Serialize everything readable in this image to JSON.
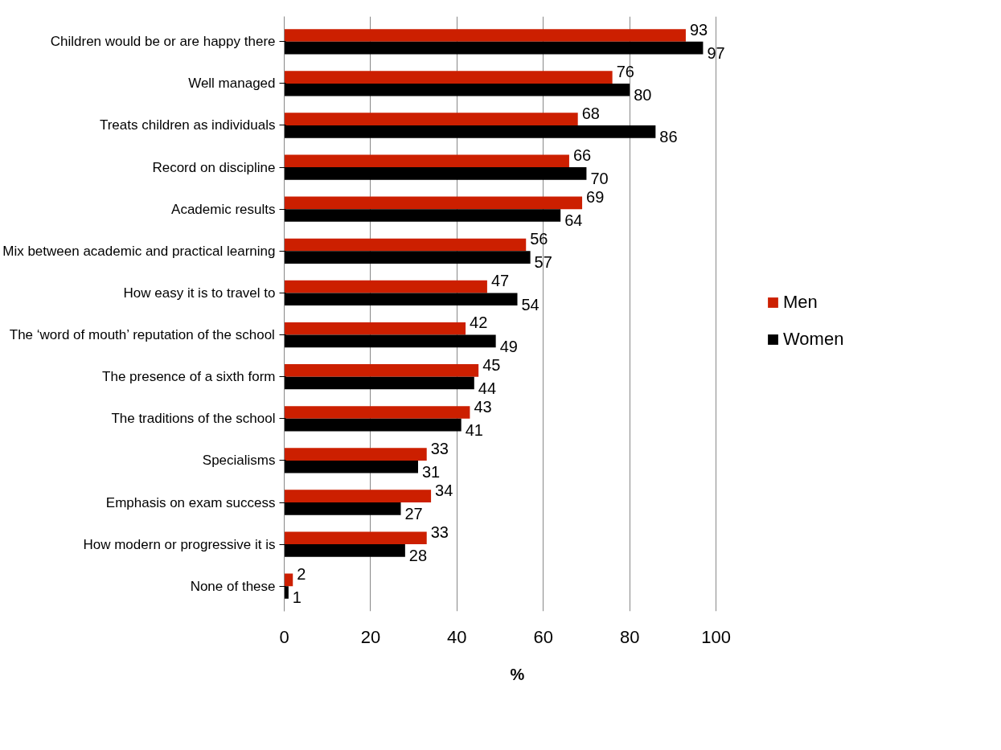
{
  "chart_data": {
    "type": "bar",
    "orientation": "horizontal",
    "xlabel": "%",
    "categories": [
      "Children would be or are happy there",
      "Well managed",
      "Treats children as individuals",
      "Record on discipline",
      "Academic results",
      "Mix between academic and practical learning",
      "How easy it is to travel to",
      "The ‘word of mouth’ reputation of the school",
      "The presence of a sixth form",
      "The traditions of the school",
      "Specialisms",
      "Emphasis on exam success",
      "How modern or progressive it is",
      "None of these"
    ],
    "series": [
      {
        "name": "Men",
        "color": "#cc1f00",
        "values": [
          93,
          76,
          68,
          66,
          69,
          56,
          47,
          42,
          45,
          43,
          33,
          34,
          33,
          2
        ]
      },
      {
        "name": "Women",
        "color": "#000000",
        "values": [
          97,
          80,
          86,
          70,
          64,
          57,
          54,
          49,
          44,
          41,
          31,
          27,
          28,
          1
        ]
      }
    ],
    "xlim": [
      0,
      100
    ],
    "xticks": [
      0,
      20,
      40,
      60,
      80,
      100
    ],
    "grid": "x",
    "legend": "right",
    "data_labels": true
  }
}
